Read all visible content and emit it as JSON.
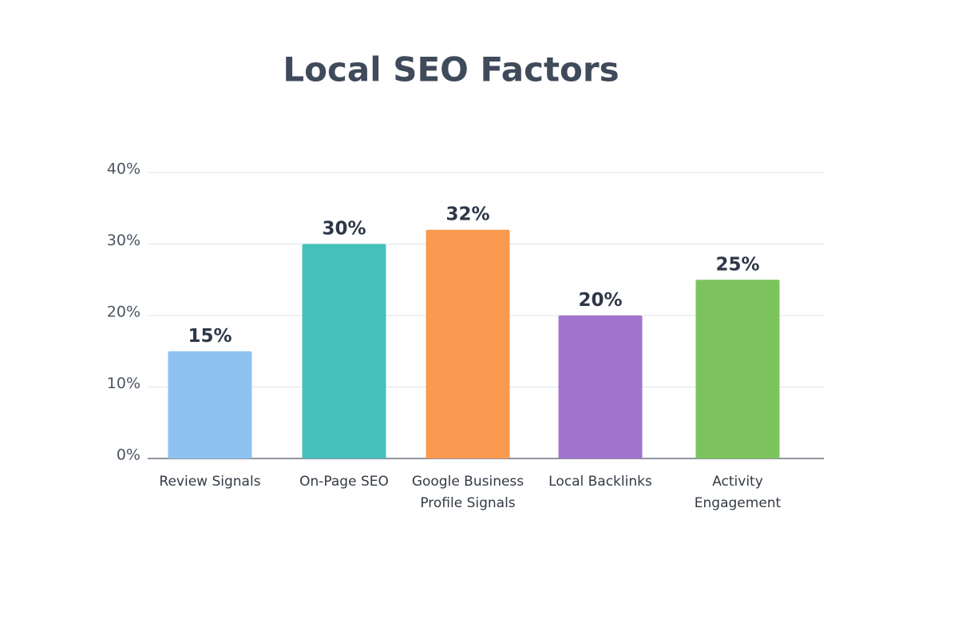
{
  "chart_data": {
    "type": "bar",
    "title": "Local SEO Factors",
    "categories": [
      "Review Signals",
      "On-Page SEO",
      "Google Business Profile Signals",
      "Local Backlinks",
      "Activity Engagement"
    ],
    "values": [
      15,
      30,
      32,
      20,
      25
    ],
    "value_labels": [
      "15%",
      "30%",
      "32%",
      "20%",
      "25%"
    ],
    "colors": [
      "#8ec3f1",
      "#45c1bb",
      "#f99a50",
      "#a174cd",
      "#7cc35e"
    ],
    "ylim": [
      0,
      40
    ],
    "yticks": [
      {
        "value": 0,
        "label": "0%"
      },
      {
        "value": 10,
        "label": "10%"
      },
      {
        "value": 20,
        "label": "20%"
      },
      {
        "value": 30,
        "label": "30%"
      },
      {
        "value": 40,
        "label": "40%"
      }
    ],
    "grid": true
  }
}
